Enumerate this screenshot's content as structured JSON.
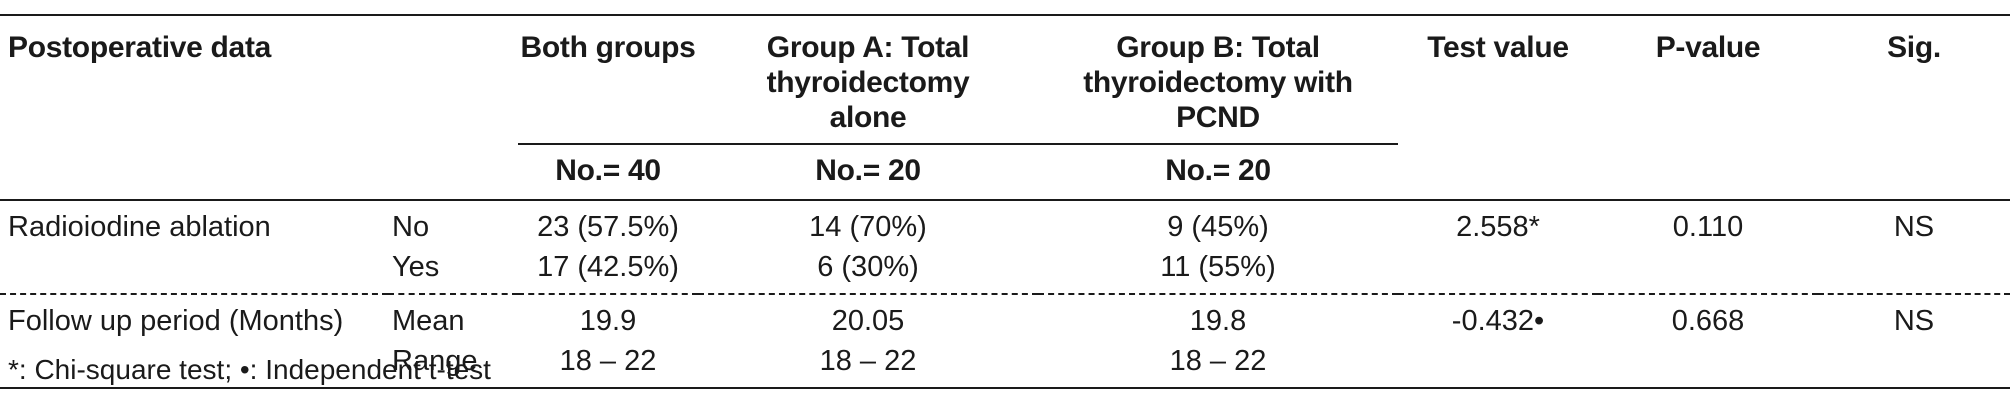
{
  "table": {
    "headers": {
      "postoperative_data": "Postoperative data",
      "both_groups": "Both groups",
      "group_a": "Group A: Total thyroidectomy alone",
      "group_b": "Group B: Total thyroidectomy with PCND",
      "test_value": "Test value",
      "p_value": "P-value",
      "sig": "Sig.",
      "both_n": "No.= 40",
      "group_a_n": "No.= 20",
      "group_b_n": "No.= 20"
    },
    "rows": [
      {
        "label": "Radioiodine ablation",
        "sub": [
          "No",
          "Yes"
        ],
        "both": [
          "23 (57.5%)",
          "17 (42.5%)"
        ],
        "group_a": [
          "14 (70%)",
          "6 (30%)"
        ],
        "group_b": [
          "9 (45%)",
          "11 (55%)"
        ],
        "test_value": "2.558*",
        "p_value": "0.110",
        "sig": "NS"
      },
      {
        "label": "Follow up period (Months)",
        "sub": [
          "Mean",
          "Range"
        ],
        "both": [
          "19.9",
          "18 – 22"
        ],
        "group_a": [
          "20.05",
          "18 – 22"
        ],
        "group_b": [
          "19.8",
          "18 – 22"
        ],
        "test_value": "-0.432•",
        "p_value": "0.668",
        "sig": "NS"
      }
    ]
  },
  "footnote": "*: Chi-square test; •: Independent t-test"
}
